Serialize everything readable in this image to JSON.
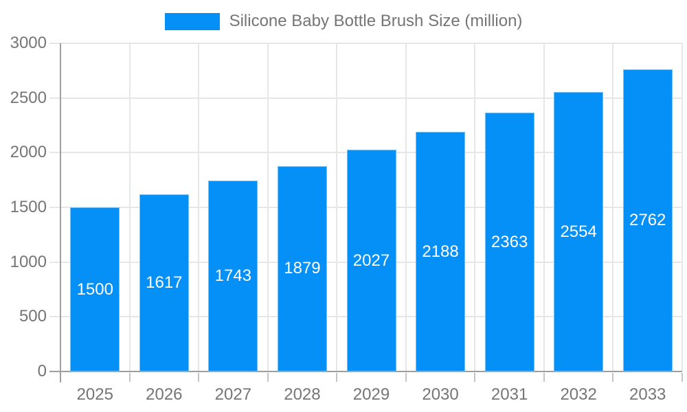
{
  "legend": {
    "label": "Silicone Baby Bottle Brush Size (million)"
  },
  "chart_data": {
    "type": "bar",
    "title": "Silicone Baby Bottle Brush Size (million)",
    "series_name": "Silicone Baby Bottle Brush Size (million)",
    "categories": [
      "2025",
      "2026",
      "2027",
      "2028",
      "2029",
      "2030",
      "2031",
      "2032",
      "2033"
    ],
    "values": [
      1500,
      1617,
      1743,
      1879,
      2027,
      2188,
      2363,
      2554,
      2762
    ],
    "xlabel": "",
    "ylabel": "",
    "ylim": [
      0,
      3000
    ],
    "yticks": [
      0,
      500,
      1000,
      1500,
      2000,
      2500,
      3000
    ],
    "grid": true,
    "legend_position": "top",
    "value_labels": "inside-center",
    "colors": {
      "bar": "#0590f8",
      "bar_edge": "rgba(255,255,255,0.45)",
      "grid": "#e6e6e6",
      "axis_line": "#9e9e9e",
      "tick": "#c4c4c4",
      "axis_text": "#757575",
      "value_text": "#ffffff",
      "background": "#ffffff"
    }
  }
}
